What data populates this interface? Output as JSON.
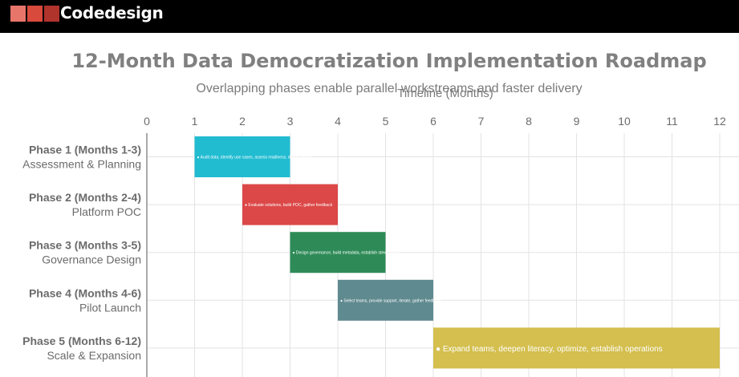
{
  "header": {
    "brand": "Codedesign",
    "logo_colors": [
      "#e8756a",
      "#d84a3c",
      "#b0332c"
    ]
  },
  "chart_data": {
    "type": "bar",
    "orientation": "horizontal",
    "layout": "gantt",
    "title": "12-Month Data Democratization Implementation Roadmap",
    "subtitle": "Overlapping phases enable parallel workstreams and faster delivery",
    "xlabel": "Timeline (Months)",
    "ylabel": "",
    "xlim": [
      0,
      12
    ],
    "xticks": [
      0,
      1,
      2,
      3,
      4,
      5,
      6,
      7,
      8,
      9,
      10,
      11,
      12
    ],
    "x_axis_position": "top",
    "grid": true,
    "legend": "none",
    "categories": [
      {
        "phase": "Phase 1 (Months 1-3)",
        "name": "Assessment & Planning"
      },
      {
        "phase": "Phase 2 (Months 2-4)",
        "name": "Platform POC"
      },
      {
        "phase": "Phase 3 (Months 3-5)",
        "name": "Governance Design"
      },
      {
        "phase": "Phase 4 (Months 4-6)",
        "name": "Pilot Launch"
      },
      {
        "phase": "Phase 5 (Months 6-12)",
        "name": "Scale & Expansion"
      }
    ],
    "bars": [
      {
        "start": 1,
        "end": 3,
        "color": "#22bcd1",
        "label": "● Audit data, identify use cases, assess readiness, define metrics"
      },
      {
        "start": 2,
        "end": 4,
        "color": "#dc4848",
        "label": "● Evaluate solutions, build POC, gather feedback"
      },
      {
        "start": 3,
        "end": 5,
        "color": "#2e8b57",
        "label": "● Design governance, build metadata, establish stewardship"
      },
      {
        "start": 4,
        "end": 6,
        "color": "#5f8a90",
        "label": "● Select teams, provide support, iterate, gather feedback"
      },
      {
        "start": 6,
        "end": 12,
        "color": "#d4bf4f",
        "label": "● Expand teams, deepen literacy, optimize, establish operations"
      }
    ]
  }
}
